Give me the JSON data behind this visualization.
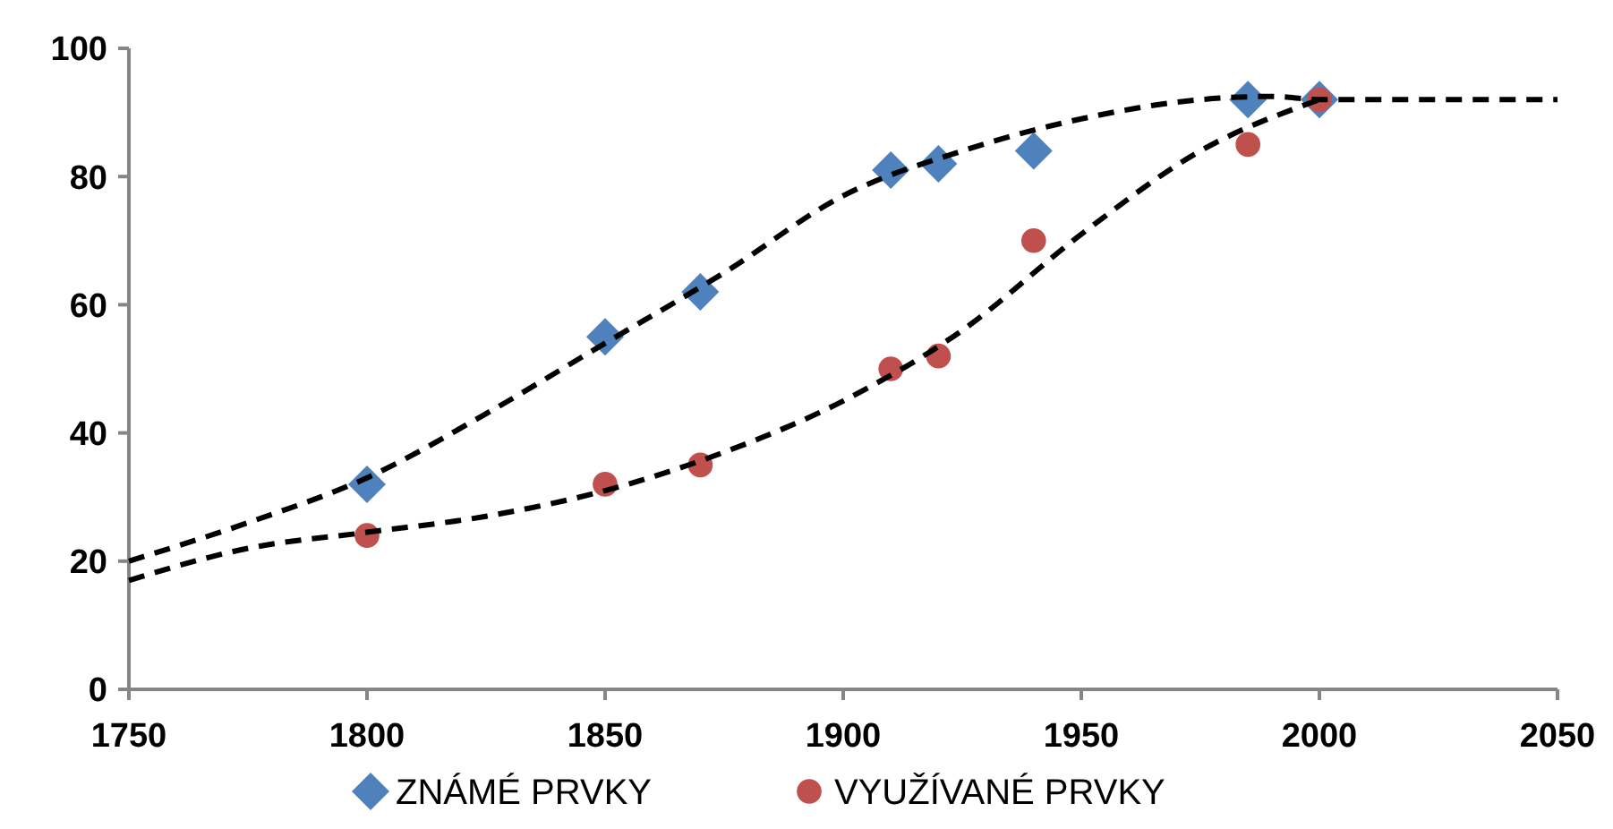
{
  "chart_data": {
    "type": "scatter",
    "x": [
      1800,
      1850,
      1870,
      1910,
      1920,
      1940,
      1985,
      2000
    ],
    "series": [
      {
        "name": "ZNÁMÉ PRVKY",
        "color": "#4f81bd",
        "marker": "diamond",
        "values": [
          32,
          55,
          62,
          81,
          82,
          84,
          92,
          92
        ]
      },
      {
        "name": "VYUŽÍVANÉ PRVKY",
        "color": "#c0504d",
        "marker": "circle",
        "values": [
          24,
          32,
          35,
          50,
          52,
          70,
          85,
          92
        ]
      },
      {
        "type": "line",
        "color": "#000000",
        "marker": "none",
        "line_style": "dashed",
        "x": [
          1750,
          1775,
          1800,
          1825,
          1850,
          1875,
          1900,
          1925,
          1950,
          1975,
          1990,
          2000,
          2025,
          2050
        ],
        "values": [
          20,
          26,
          33,
          43,
          54,
          65,
          77,
          84,
          89,
          92,
          92.5,
          92,
          92,
          92
        ]
      },
      {
        "type": "line",
        "color": "#000000",
        "marker": "none",
        "line_style": "dashed",
        "x": [
          1750,
          1775,
          1800,
          1825,
          1850,
          1875,
          1900,
          1925,
          1950,
          1975,
          2000
        ],
        "values": [
          17,
          22,
          24.5,
          27,
          31,
          37,
          45,
          56,
          71,
          84,
          92
        ]
      }
    ],
    "xlim": [
      1750,
      2050
    ],
    "xticks": [
      1750,
      1800,
      1850,
      1900,
      1950,
      2000,
      2050
    ],
    "ylim": [
      0,
      100
    ],
    "yticks": [
      0,
      20,
      40,
      60,
      80,
      100
    ],
    "grid": false,
    "legend": "bottom"
  }
}
